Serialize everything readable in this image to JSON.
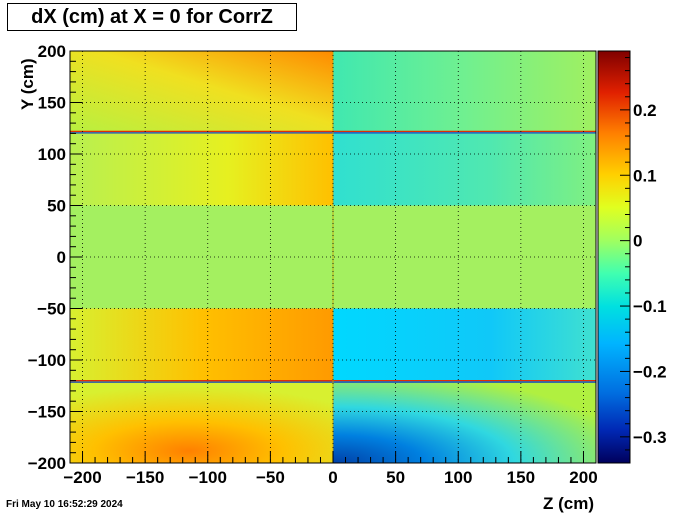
{
  "chart_data": {
    "type": "heatmap",
    "title": "dX (cm) at X = 0 for CorrZ",
    "xlabel": "Z (cm)",
    "ylabel": "Y (cm)",
    "xlim": [
      -210,
      210
    ],
    "ylim": [
      -200,
      200
    ],
    "zlim": [
      -0.34,
      0.29
    ],
    "x_ticks": [
      -200,
      -150,
      -100,
      -50,
      0,
      50,
      100,
      150,
      200
    ],
    "x_tick_labels": [
      "−200",
      "−150",
      "−100",
      "−50",
      "0",
      "50",
      "100",
      "150",
      "200"
    ],
    "y_ticks": [
      -200,
      -150,
      -100,
      -50,
      0,
      50,
      100,
      150,
      200
    ],
    "y_tick_labels": [
      "−200",
      "−150",
      "−100",
      "−50",
      "0",
      "50",
      "100",
      "150",
      "200"
    ],
    "z_ticks": [
      -0.3,
      -0.2,
      -0.1,
      0,
      0.1,
      0.2
    ],
    "z_tick_labels": [
      "−0.3",
      "−0.2",
      "−0.1",
      "0",
      "0.1",
      "0.2"
    ],
    "grid": true,
    "palette": [
      "#00005c",
      "#0028b4",
      "#006ee0",
      "#00b4ff",
      "#00e0e0",
      "#40ffb0",
      "#80ff80",
      "#c0ff40",
      "#ffff00",
      "#ffc000",
      "#ff7000",
      "#e02000",
      "#800000"
    ],
    "region_values": [
      {
        "region": "z<0, y 120..200",
        "dx": [
          0.02,
          0.06,
          0.11,
          0.19
        ]
      },
      {
        "region": "z<0, y 50..120",
        "dx": [
          0.04,
          0.07,
          0.1,
          0.15
        ]
      },
      {
        "region": "z<0, y -50..50",
        "dx": [
          0.0
        ]
      },
      {
        "region": "z<0, y -120..-50",
        "dx": [
          0.06,
          0.1,
          0.13,
          0.17
        ]
      },
      {
        "region": "z<0, y -200..-120",
        "dx": [
          0.04,
          0.09,
          0.14,
          0.19
        ]
      },
      {
        "region": "z>0, y 120..200",
        "dx": [
          -0.03,
          -0.05
        ]
      },
      {
        "region": "z>0, y 50..120",
        "dx": [
          -0.05,
          -0.07
        ]
      },
      {
        "region": "z>0, y -50..50",
        "dx": [
          0.0
        ]
      },
      {
        "region": "z>0, y -120..-50",
        "dx": [
          -0.05,
          -0.1,
          -0.13
        ]
      },
      {
        "region": "z>0, y -200..-120",
        "dx": [
          0.02,
          -0.05,
          -0.13,
          -0.22,
          -0.3
        ]
      }
    ],
    "discontinuities_y": [
      121,
      -121
    ]
  },
  "timestamp": "Fri May 10 16:52:29 2024"
}
